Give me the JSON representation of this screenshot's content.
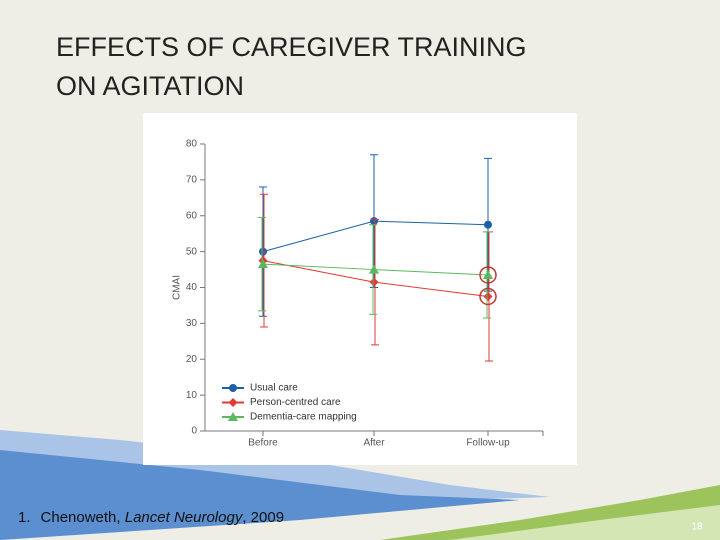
{
  "slide": {
    "title_lines": [
      "EFFECTS OF CAREGIVER TRAINING",
      "ON AGITATION"
    ],
    "citation": {
      "number": "1.",
      "author": "Chenoweth, ",
      "journal": "Lancet Neurology",
      "year": ", 2009"
    },
    "page_number": "18"
  },
  "chart_data": {
    "type": "line",
    "y_label": "CMAI",
    "categories": [
      "Before",
      "After",
      "Follow-up"
    ],
    "ylim": [
      0,
      80
    ],
    "yticks": [
      0,
      10,
      20,
      30,
      40,
      50,
      60,
      70,
      80
    ],
    "legend": "lower left",
    "series": [
      {
        "name": "Usual care",
        "color": "#1f5fa8",
        "marker": "circle",
        "values": [
          50,
          58.5,
          57.5
        ],
        "errors": [
          18,
          18.5,
          18.5
        ]
      },
      {
        "name": "Person-centred care",
        "color": "#e03a32",
        "marker": "diamond",
        "values": [
          47.5,
          41.5,
          37.5
        ],
        "errors": [
          18.5,
          17.5,
          18
        ]
      },
      {
        "name": "Dementia-care mapping",
        "color": "#5cb85c",
        "marker": "triangle",
        "values": [
          46.5,
          45,
          43.5
        ],
        "errors": [
          13,
          12.5,
          12
        ]
      }
    ]
  }
}
